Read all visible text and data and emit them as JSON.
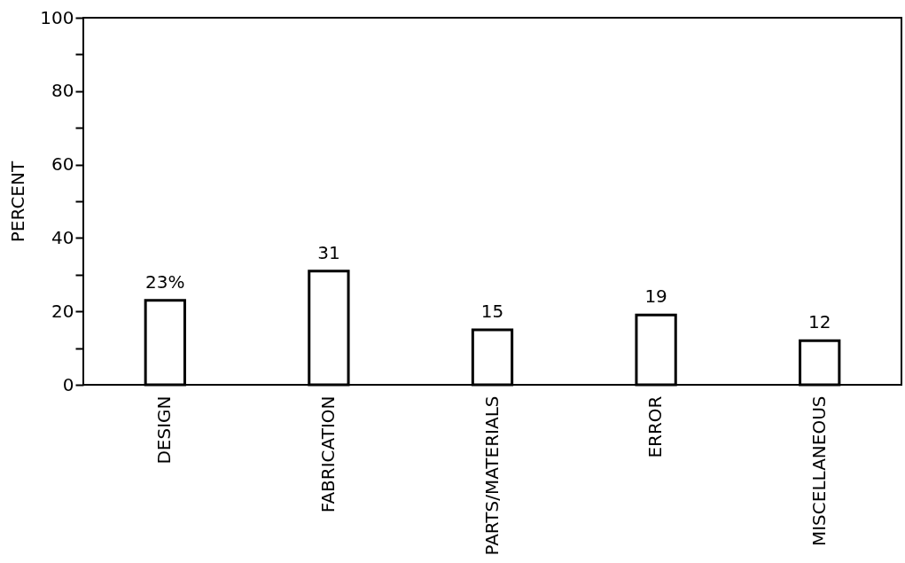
{
  "chart_data": {
    "type": "bar",
    "ylabel": "PERCENT",
    "categories": [
      "DESIGN",
      "FABRICATION",
      "PARTS/MATERIALS",
      "ERROR",
      "MISCELLANEOUS"
    ],
    "values": [
      23,
      31,
      15,
      19,
      12
    ],
    "value_labels": [
      "23%",
      "31",
      "15",
      "19",
      "12"
    ],
    "color": "#ffffff",
    "ylim": [
      0,
      100
    ],
    "yticks": [
      0,
      {
        "value": 10,
        "label": null
      },
      20,
      {
        "value": 30,
        "label": null
      },
      40,
      {
        "value": 50,
        "label": null
      },
      60,
      {
        "value": 70,
        "label": null
      },
      80,
      {
        "value": 90,
        "label": null
      },
      100
    ],
    "grid": false
  }
}
